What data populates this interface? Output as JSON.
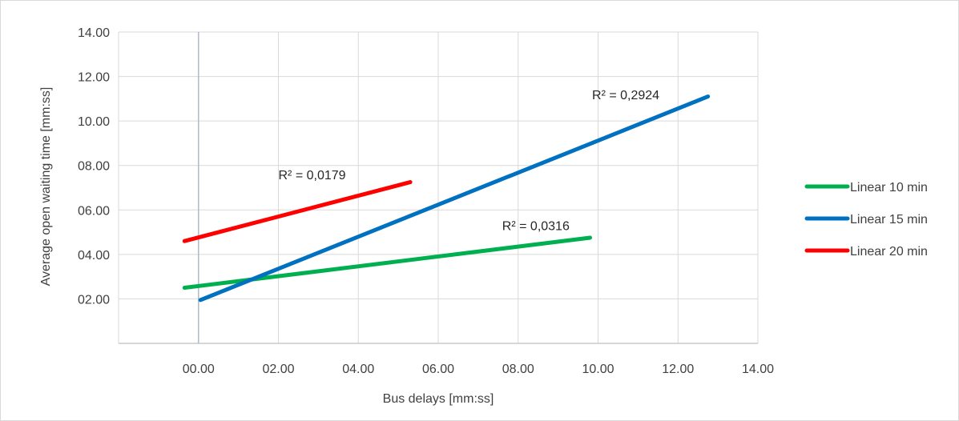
{
  "chart_data": {
    "type": "line",
    "xlabel": "Bus delays [mm:ss]",
    "ylabel": "Average open waiting time [mm:ss]",
    "xlim": [
      -2,
      14
    ],
    "ylim": [
      0,
      14
    ],
    "x_ticks": [
      "00.00",
      "02.00",
      "04.00",
      "06.00",
      "08.00",
      "10.00",
      "12.00",
      "14.00"
    ],
    "y_ticks": [
      "02.00",
      "04.00",
      "06.00",
      "08.00",
      "10.00",
      "12.00",
      "14.00"
    ],
    "grid": true,
    "legend_position": "right",
    "series": [
      {
        "name": "Linear 10 min",
        "color": "#00b050",
        "x": [
          -0.35,
          9.8
        ],
        "y": [
          2.5,
          4.75
        ],
        "r2_label": "R² = 0,0316"
      },
      {
        "name": "Linear 15 min",
        "color": "#0070c0",
        "x": [
          0.05,
          12.75
        ],
        "y": [
          1.95,
          11.1
        ],
        "r2_label": "R² = 0,2924"
      },
      {
        "name": "Linear 20 min",
        "color": "#ff0000",
        "x": [
          -0.35,
          5.3
        ],
        "y": [
          4.6,
          7.25
        ],
        "r2_label": "R² = 0,0179"
      }
    ]
  }
}
